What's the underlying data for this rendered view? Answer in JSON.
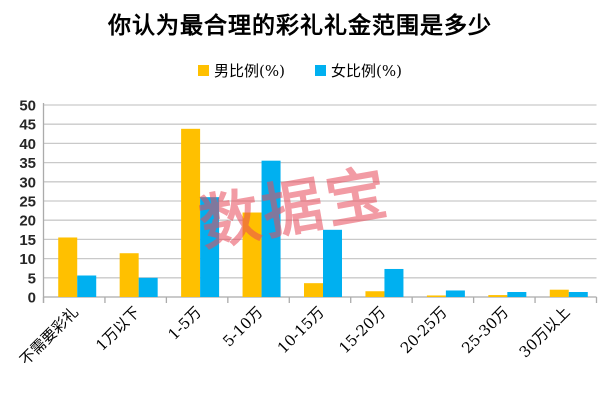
{
  "window": {
    "background": "#ffffff"
  },
  "chart": {
    "title": "你认为最合理的彩礼礼金范围是多少",
    "watermark": {
      "text": "数据宝",
      "color": "#E94B5A",
      "opacity": 0.55
    }
  },
  "chart_data": {
    "type": "bar",
    "title": "你认为最合理的彩礼礼金范围是多少",
    "categories": [
      "不需要彩礼",
      "1万以下",
      "1-5万",
      "5-10万",
      "10-15万",
      "15-20万",
      "20-25万",
      "25-30万",
      "30万以上"
    ],
    "series": [
      {
        "name": "男比例(%)",
        "color": "#FFC000",
        "values": [
          15.5,
          11.4,
          43.8,
          22.0,
          3.6,
          1.5,
          0.4,
          0.5,
          1.9
        ]
      },
      {
        "name": "女比例(%)",
        "color": "#00B0F0",
        "values": [
          5.6,
          5.0,
          26.0,
          35.5,
          17.5,
          7.3,
          1.7,
          1.3,
          1.3
        ]
      }
    ],
    "xlabel": "",
    "ylabel": "",
    "ylim": [
      0,
      50
    ],
    "ytick_step": 5,
    "grid": true,
    "legend_position": "top",
    "grid_color": "#C9C9C9",
    "axis_color": "#ABABAB",
    "tick_label_color": "#262626",
    "category_label_color": "#000000"
  }
}
